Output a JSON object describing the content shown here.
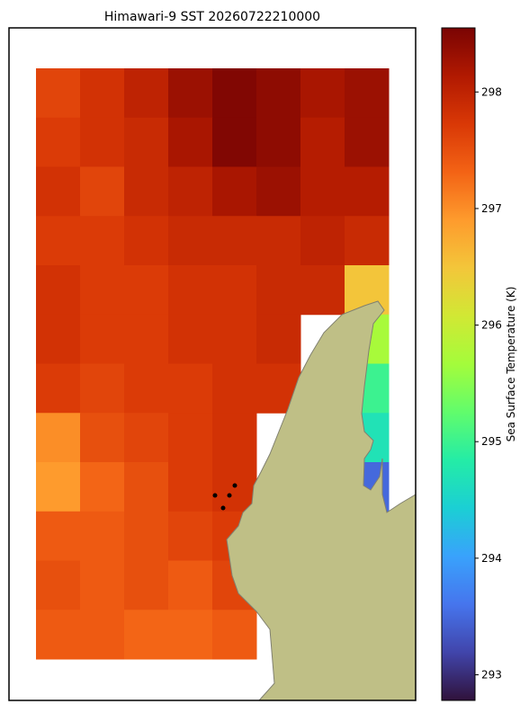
{
  "chart_data": {
    "type": "heatmap",
    "title": "Himawari-9 SST 20260722210000",
    "colorbar_label": "Sea Surface Temperature (K)",
    "colormap": "turbo",
    "clim": [
      292.78,
      298.55
    ],
    "cticks": [
      293,
      294,
      295,
      296,
      297,
      298
    ],
    "z": [
      [
        297.6,
        297.8,
        298.0,
        298.3,
        298.5,
        298.4,
        298.2,
        298.3
      ],
      [
        297.7,
        297.8,
        297.9,
        298.2,
        298.5,
        298.4,
        298.1,
        298.3
      ],
      [
        297.8,
        297.6,
        297.9,
        298.0,
        298.2,
        298.3,
        298.1,
        298.1
      ],
      [
        297.7,
        297.7,
        297.8,
        297.9,
        297.9,
        297.9,
        298.0,
        297.9
      ],
      [
        297.8,
        297.7,
        297.7,
        297.8,
        297.8,
        297.9,
        297.9,
        296.5
      ],
      [
        297.8,
        297.7,
        297.7,
        297.8,
        297.8,
        297.9,
        null,
        295.7
      ],
      [
        297.7,
        297.6,
        297.7,
        297.7,
        297.8,
        297.8,
        null,
        295.0
      ],
      [
        297.0,
        297.5,
        297.6,
        297.7,
        297.8,
        null,
        null,
        294.7
      ],
      [
        296.9,
        297.3,
        297.5,
        297.7,
        297.8,
        null,
        null,
        293.5
      ],
      [
        297.4,
        297.4,
        297.5,
        297.6,
        297.7,
        null,
        null,
        null
      ],
      [
        297.5,
        297.4,
        297.5,
        297.4,
        297.6,
        null,
        null,
        null
      ],
      [
        297.4,
        297.4,
        297.3,
        297.3,
        297.4,
        null,
        null,
        null
      ]
    ]
  }
}
